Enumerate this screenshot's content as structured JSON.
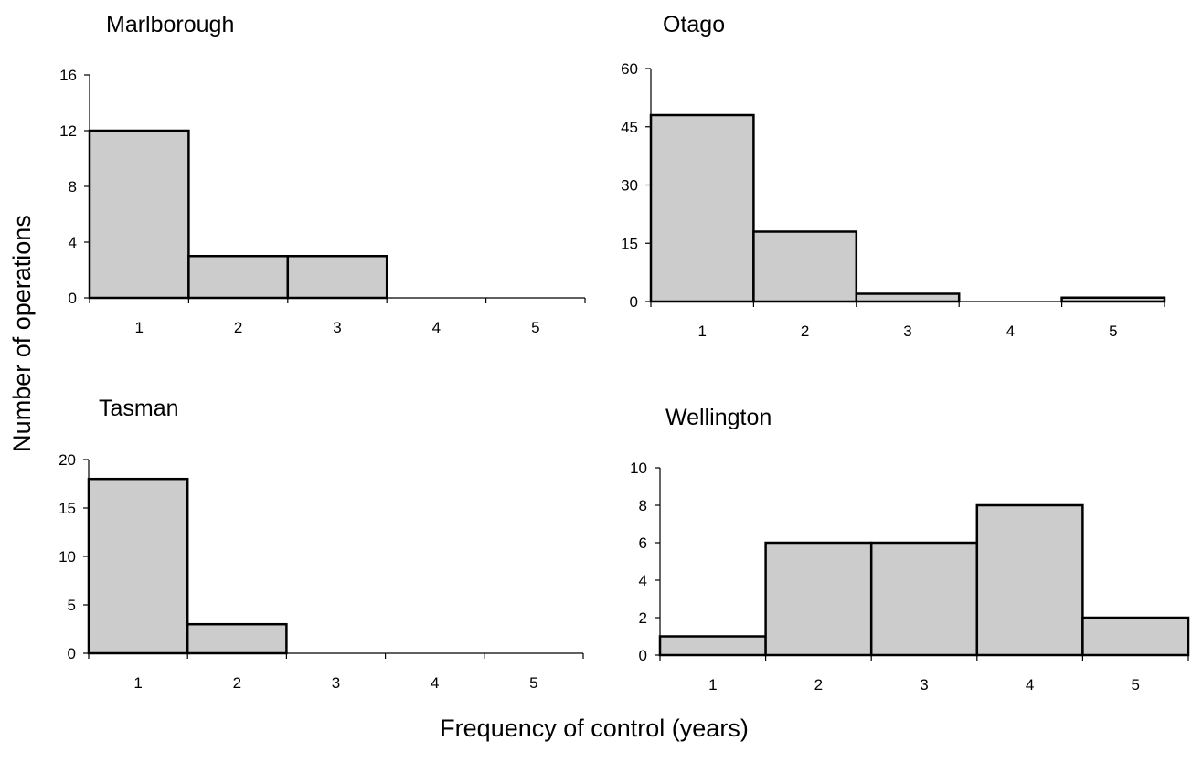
{
  "figure": {
    "ylabel": "Number of operations",
    "xlabel": "Frequency of control (years)"
  },
  "chart_data": [
    {
      "type": "bar",
      "title": "Marlborough",
      "categories": [
        "1",
        "2",
        "3",
        "4",
        "5"
      ],
      "values": [
        12,
        3,
        3,
        0,
        0
      ],
      "ylim": [
        0,
        16
      ],
      "yticks": [
        "0",
        "4",
        "8",
        "12",
        "16"
      ],
      "grid": false,
      "bar_color": "#cccccc"
    },
    {
      "type": "bar",
      "title": "Otago",
      "categories": [
        "1",
        "2",
        "3",
        "4",
        "5"
      ],
      "values": [
        48,
        18,
        2,
        0,
        1
      ],
      "ylim": [
        0,
        60
      ],
      "yticks": [
        "0",
        "15",
        "30",
        "45",
        "60"
      ],
      "grid": false,
      "bar_color": "#cccccc"
    },
    {
      "type": "bar",
      "title": "Tasman",
      "categories": [
        "1",
        "2",
        "3",
        "4",
        "5"
      ],
      "values": [
        18,
        3,
        0,
        0,
        0
      ],
      "ylim": [
        0,
        20
      ],
      "yticks": [
        "0",
        "5",
        "10",
        "15",
        "20"
      ],
      "grid": false,
      "bar_color": "#cccccc"
    },
    {
      "type": "bar",
      "title": "Wellington",
      "categories": [
        "1",
        "2",
        "3",
        "4",
        "5"
      ],
      "values": [
        1,
        6,
        6,
        8,
        2
      ],
      "ylim": [
        0,
        10
      ],
      "yticks": [
        "0",
        "2",
        "4",
        "6",
        "8",
        "10"
      ],
      "grid": false,
      "bar_color": "#cccccc"
    }
  ]
}
